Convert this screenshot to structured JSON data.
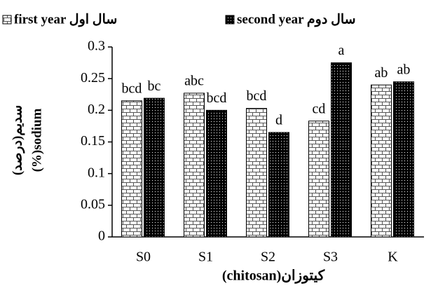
{
  "chart_data": {
    "type": "bar",
    "y_label": [
      "سدیم(درصد)",
      "(%)sodium"
    ],
    "x_label": "(chitosan)کیتوزان",
    "categories": [
      "S0",
      "S1",
      "S2",
      "S3",
      "K"
    ],
    "series": [
      {
        "name": "first year سال اول",
        "color": "#ffffff",
        "values": [
          0.215,
          0.227,
          0.203,
          0.183,
          0.24
        ],
        "letters": [
          "bcd",
          "abc",
          "bcd",
          "cd",
          "ab"
        ]
      },
      {
        "name": "second year سال دوم",
        "color": "#000000",
        "values": [
          0.219,
          0.2,
          0.165,
          0.275,
          0.245
        ],
        "letters": [
          "bc",
          "bcd",
          "d",
          "a",
          "ab"
        ]
      }
    ],
    "ylim": [
      0,
      0.3
    ],
    "yticks": [
      0,
      0.05,
      0.1,
      0.15,
      0.2,
      0.25,
      0.3
    ],
    "grid": false,
    "legend": "top"
  }
}
